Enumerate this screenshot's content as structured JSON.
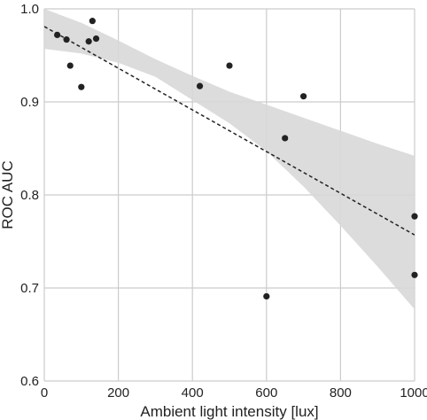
{
  "chart_data": {
    "type": "scatter",
    "title": "",
    "xlabel": "Ambient light intensity [lux]",
    "ylabel": "ROC AUC",
    "xlim": [
      0,
      1000
    ],
    "ylim": [
      0.6,
      1.0
    ],
    "xticks": [
      0,
      200,
      400,
      600,
      800,
      1000
    ],
    "yticks": [
      0.6,
      0.7,
      0.8,
      0.9,
      1.0
    ],
    "xtick_labels": [
      "0",
      "200",
      "400",
      "600",
      "800",
      "1000"
    ],
    "ytick_labels": [
      "0.6",
      "0.7",
      "0.8",
      "0.9",
      "1.0"
    ],
    "grid": true,
    "points": [
      {
        "x": 35,
        "y": 0.972
      },
      {
        "x": 60,
        "y": 0.967
      },
      {
        "x": 70,
        "y": 0.939
      },
      {
        "x": 100,
        "y": 0.916
      },
      {
        "x": 120,
        "y": 0.965
      },
      {
        "x": 130,
        "y": 0.987
      },
      {
        "x": 140,
        "y": 0.968
      },
      {
        "x": 420,
        "y": 0.917
      },
      {
        "x": 500,
        "y": 0.939
      },
      {
        "x": 600,
        "y": 0.691
      },
      {
        "x": 650,
        "y": 0.861
      },
      {
        "x": 700,
        "y": 0.906
      },
      {
        "x": 1000,
        "y": 0.777
      },
      {
        "x": 1000,
        "y": 0.714
      }
    ],
    "regression_line": {
      "x": [
        0,
        1000
      ],
      "y": [
        0.981,
        0.757
      ]
    },
    "confidence_band": {
      "x": [
        0,
        100,
        200,
        300,
        400,
        500,
        600,
        700,
        800,
        900,
        1000
      ],
      "upper": [
        1.0,
        0.985,
        0.966,
        0.946,
        0.928,
        0.911,
        0.897,
        0.883,
        0.869,
        0.855,
        0.842
      ],
      "lower": [
        0.957,
        0.952,
        0.942,
        0.927,
        0.902,
        0.877,
        0.847,
        0.809,
        0.767,
        0.723,
        0.677
      ]
    },
    "colors": {
      "points": "#222222",
      "line": "#222222",
      "band": "#d8d8d8",
      "grid": "#cccccc"
    }
  }
}
